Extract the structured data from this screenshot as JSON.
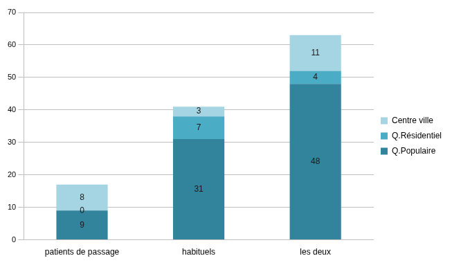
{
  "chart_data": {
    "type": "bar",
    "stacked": true,
    "data_labels": true,
    "grid": true,
    "legend": "right",
    "categories": [
      "patients de passage",
      "habituels",
      "les deux"
    ],
    "series": [
      {
        "name": "Q.Populaire",
        "color": "#31849b",
        "values": [
          9,
          31,
          48
        ]
      },
      {
        "name": "Q.Résidentiel",
        "color": "#4bacc6",
        "values": [
          0,
          7,
          4
        ]
      },
      {
        "name": "Centre ville",
        "color": "#a5d5e2",
        "values": [
          8,
          3,
          11
        ]
      }
    ],
    "ylim": [
      0,
      70
    ],
    "yticks": [
      0,
      10,
      20,
      30,
      40,
      50,
      60,
      70
    ]
  }
}
